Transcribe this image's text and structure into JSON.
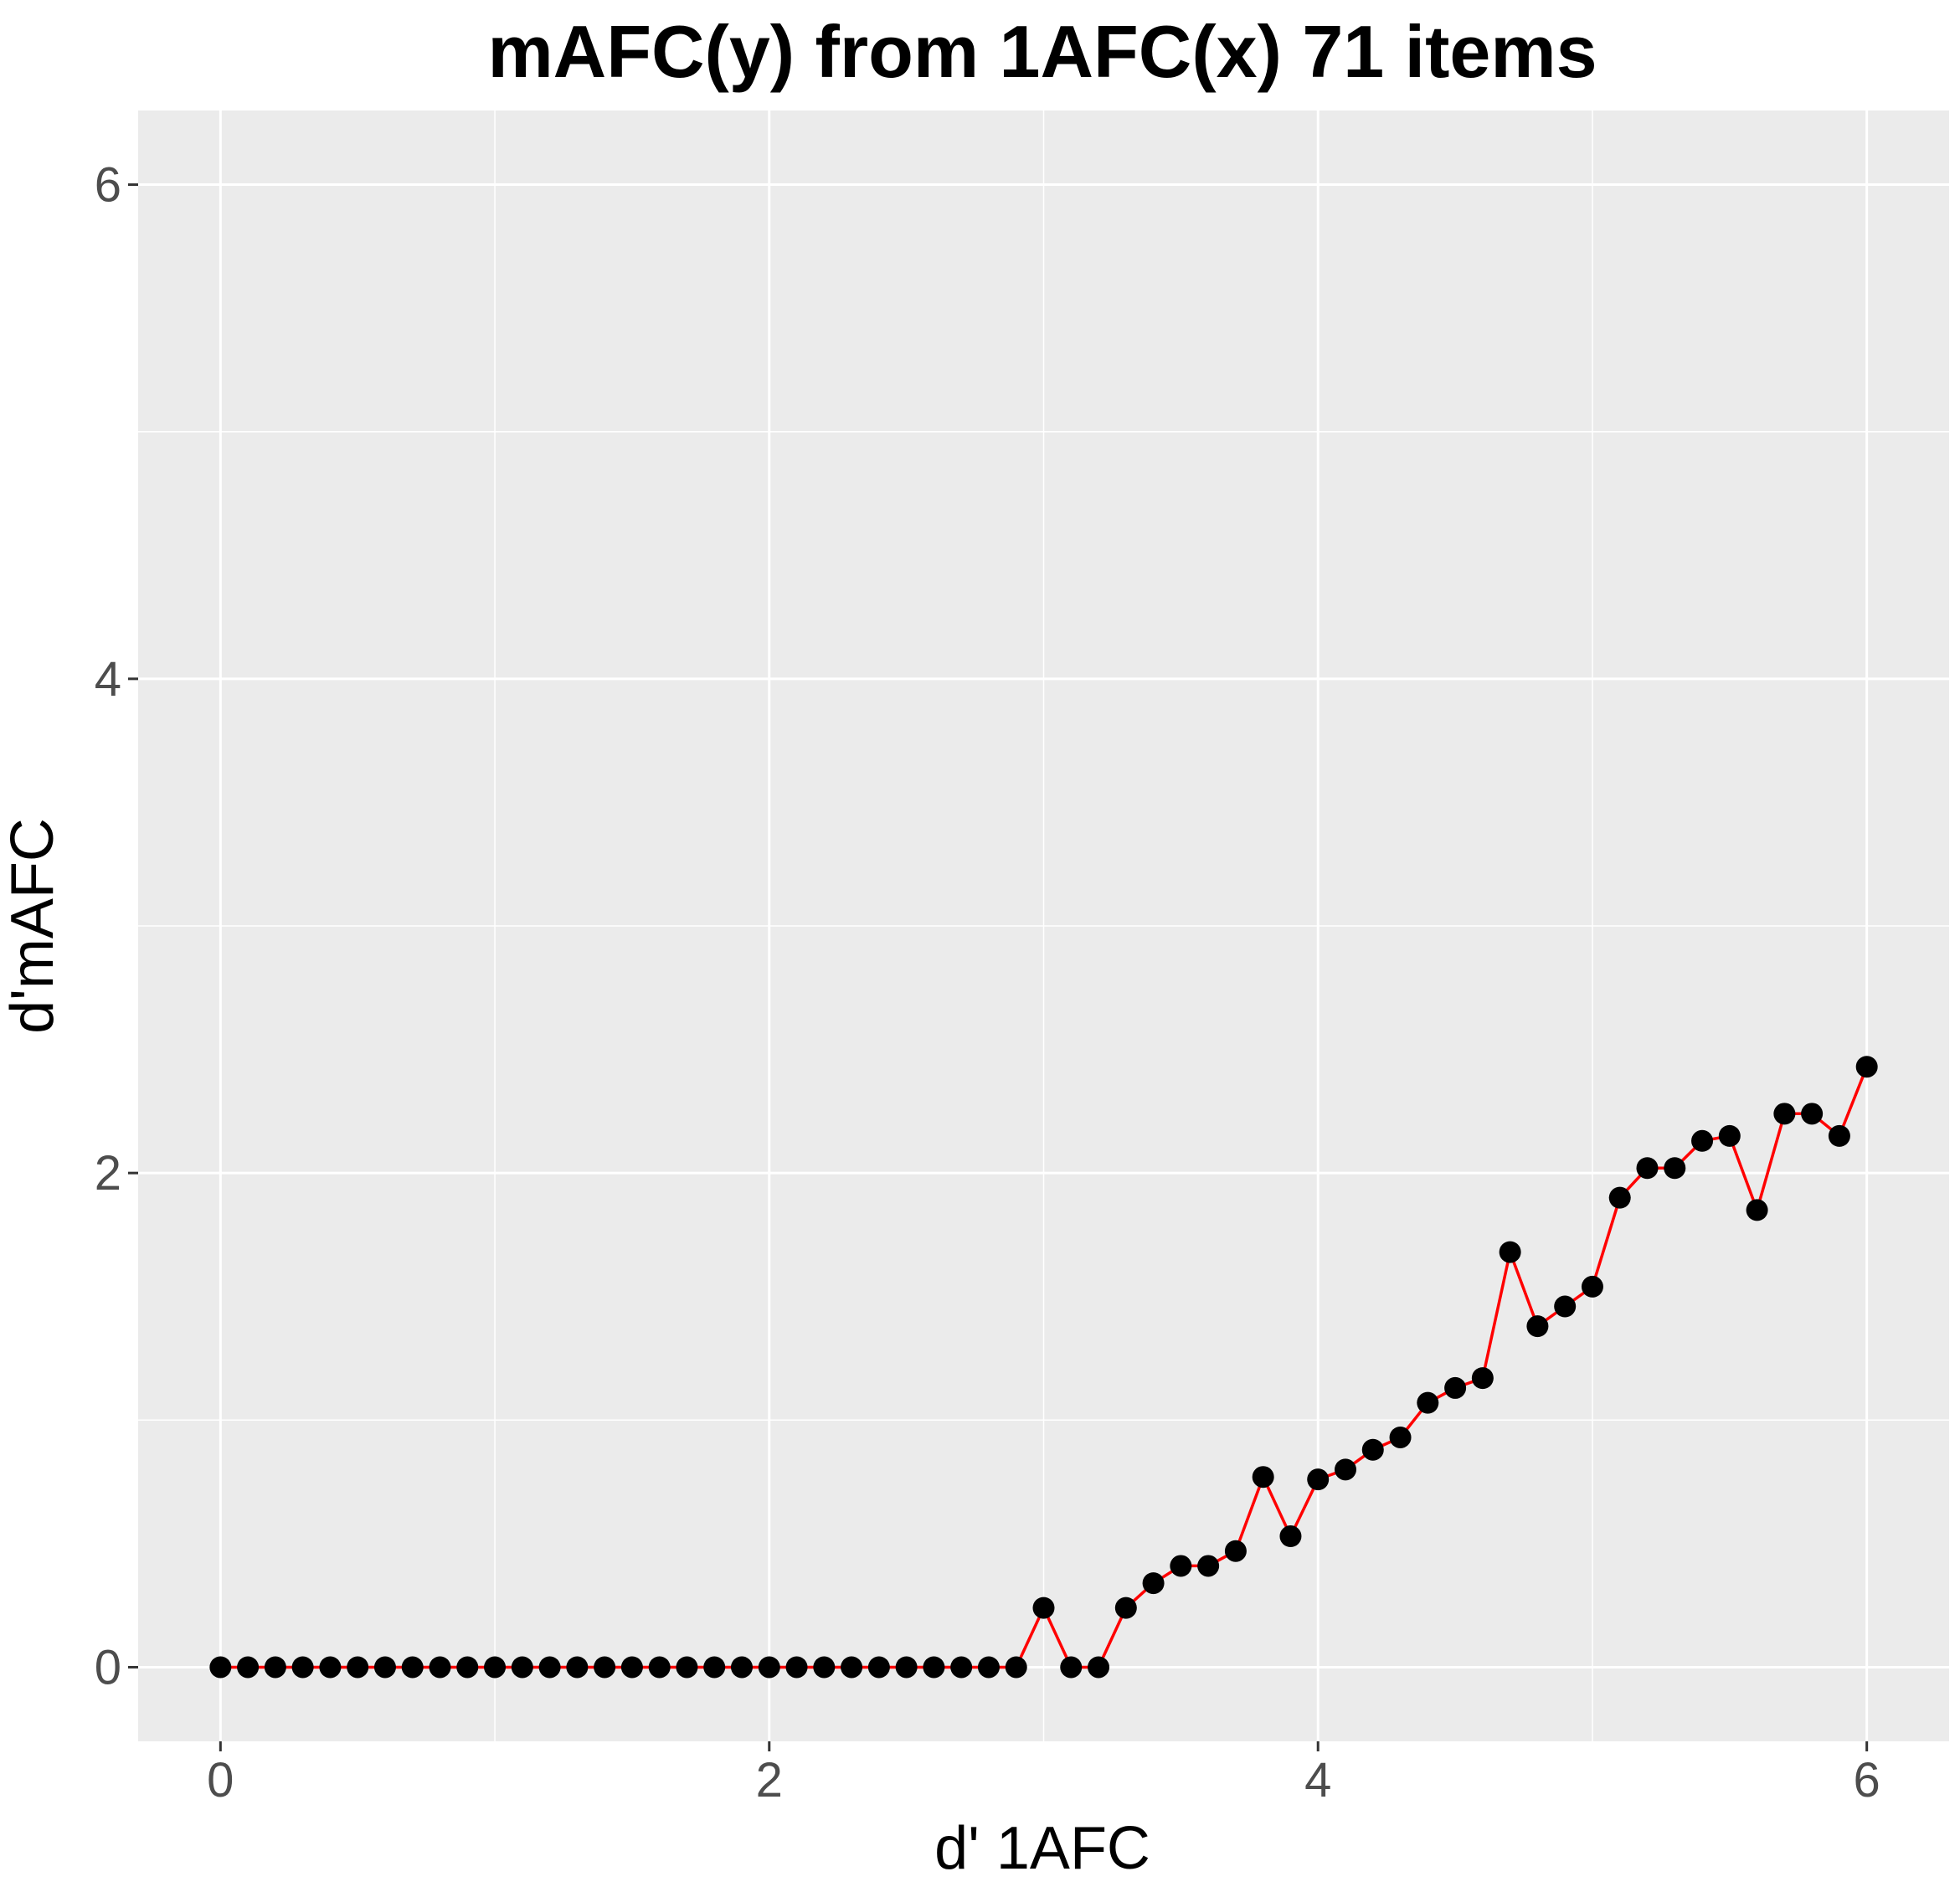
{
  "chart_data": {
    "type": "line",
    "title": "mAFC(y) from 1AFC(x) 71 items",
    "xlabel": "d' 1AFC",
    "ylabel": "d'mAFC",
    "xlim": [
      -0.3,
      6.3
    ],
    "ylim": [
      -0.3,
      6.3
    ],
    "x_ticks": [
      0,
      2,
      4,
      6
    ],
    "y_ticks": [
      0,
      2,
      4,
      6
    ],
    "x_tick_labels": [
      "0",
      "2",
      "4",
      "6"
    ],
    "y_tick_labels": [
      "0",
      "2",
      "4",
      "6"
    ],
    "grid": true,
    "legend": "none",
    "colors": {
      "panel": "#ebebeb",
      "grid": "#ffffff",
      "line": "#ff0000",
      "points": "#000000"
    },
    "series": [
      {
        "x": [
          0.0,
          0.1,
          0.2,
          0.3,
          0.4,
          0.5,
          0.6,
          0.7,
          0.8,
          0.9,
          1.0,
          1.1,
          1.2,
          1.3,
          1.4,
          1.5,
          1.6,
          1.7,
          1.8,
          1.9,
          2.0,
          2.1,
          2.2,
          2.3,
          2.4,
          2.5,
          2.6,
          2.7,
          2.8,
          2.9,
          3.0,
          3.1,
          3.2,
          3.3,
          3.4,
          3.5,
          3.6,
          3.7,
          3.8,
          3.9,
          4.0,
          4.1,
          4.2,
          4.3,
          4.4,
          4.5,
          4.6,
          4.7,
          4.8,
          4.9,
          5.0,
          5.1,
          5.2,
          5.3,
          5.4,
          5.5,
          5.6,
          5.7,
          5.8,
          5.9,
          6.0
        ],
        "y": [
          0,
          0,
          0,
          0,
          0,
          0,
          0,
          0,
          0,
          0,
          0,
          0,
          0,
          0,
          0,
          0,
          0,
          0,
          0,
          0,
          0,
          0,
          0,
          0,
          0,
          0,
          0,
          0,
          0,
          0,
          0.24,
          0,
          0,
          0.24,
          0.34,
          0.41,
          0.41,
          0.47,
          0.77,
          0.53,
          0.76,
          0.8,
          0.88,
          0.93,
          1.07,
          1.13,
          1.17,
          1.68,
          1.38,
          1.46,
          1.54,
          1.9,
          2.02,
          2.02,
          2.13,
          2.15,
          1.85,
          2.24,
          2.24,
          2.15,
          2.43
        ]
      }
    ]
  }
}
